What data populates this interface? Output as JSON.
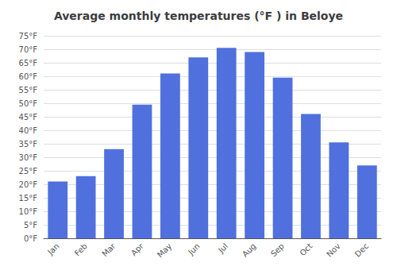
{
  "chart_data": {
    "type": "bar",
    "title": "Average monthly temperatures (°F ) in Beloye",
    "categories": [
      "Jan",
      "Feb",
      "Mar",
      "Apr",
      "May",
      "Jun",
      "Jul",
      "Aug",
      "Sep",
      "Oct",
      "Nov",
      "Dec"
    ],
    "values": [
      21,
      23,
      33,
      49.5,
      61,
      67,
      70.5,
      69,
      59.5,
      46,
      35.5,
      27
    ],
    "ylim": [
      0,
      75
    ],
    "yticks": [
      {
        "value": 0,
        "label": "0°F"
      },
      {
        "value": 5,
        "label": "5°F"
      },
      {
        "value": 10,
        "label": "10°F"
      },
      {
        "value": 15,
        "label": "15°F"
      },
      {
        "value": 20,
        "label": "20°F"
      },
      {
        "value": 25,
        "label": "25°F"
      },
      {
        "value": 30,
        "label": "30°F"
      },
      {
        "value": 35,
        "label": "35°F"
      },
      {
        "value": 40,
        "label": "40°F"
      },
      {
        "value": 45,
        "label": "45°F"
      },
      {
        "value": 50,
        "label": "50°F"
      },
      {
        "value": 55,
        "label": "55°F"
      },
      {
        "value": 60,
        "label": "60°F"
      },
      {
        "value": 65,
        "label": "65°F"
      },
      {
        "value": 70,
        "label": "70°F"
      },
      {
        "value": 75,
        "label": "75°F"
      }
    ],
    "grid": true
  }
}
